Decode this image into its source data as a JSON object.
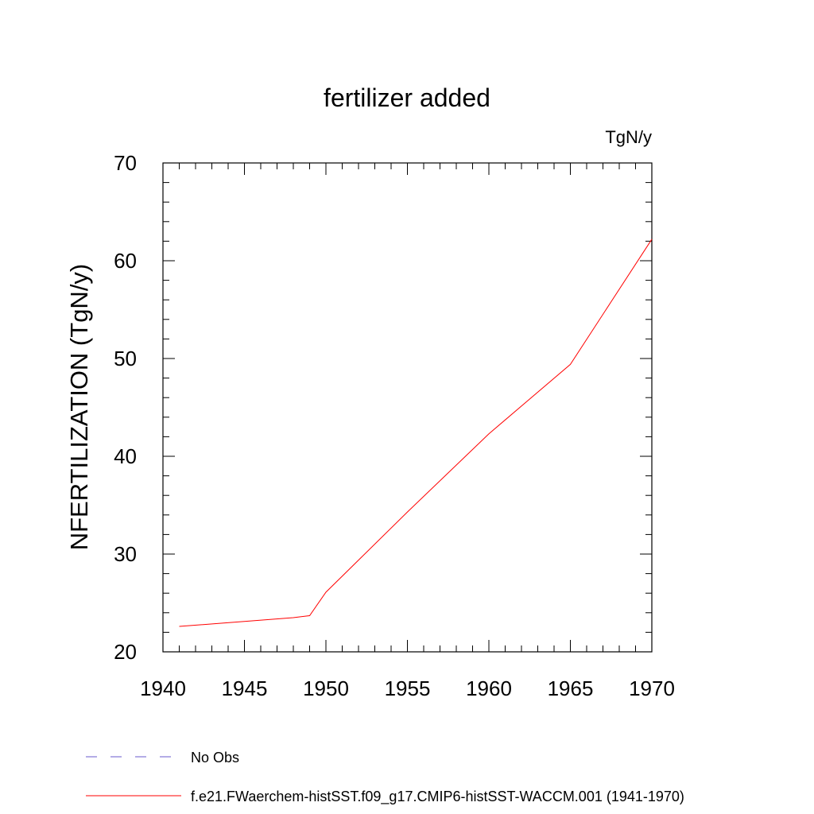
{
  "chart_data": {
    "type": "line",
    "title": "fertilizer added",
    "units_label": "TgN/y",
    "xlabel": "",
    "ylabel": "NFERTILIZATION  (TgN/y)",
    "xlim": [
      1940,
      1970
    ],
    "ylim": [
      20,
      70
    ],
    "x_ticks": [
      1940,
      1945,
      1950,
      1955,
      1960,
      1965,
      1970
    ],
    "y_ticks": [
      20,
      30,
      40,
      50,
      60,
      70
    ],
    "grid": false,
    "legend_position": "bottom",
    "series": [
      {
        "name": "f.e21.FWaerchem-histSST.f09_g17.CMIP6-histSST-WACCM.001 (1941-1970)",
        "color": "#ff0000",
        "style": "solid",
        "x": [
          1941,
          1948,
          1949,
          1950,
          1955,
          1960,
          1965,
          1970
        ],
        "y": [
          22.6,
          23.5,
          23.7,
          26.1,
          34.3,
          42.3,
          49.4,
          62.2
        ]
      }
    ],
    "legend": [
      {
        "label": "No Obs",
        "color": "#6a5acd",
        "style": "dashed"
      },
      {
        "label": "f.e21.FWaerchem-histSST.f09_g17.CMIP6-histSST-WACCM.001 (1941-1970)",
        "color": "#ff0000",
        "style": "solid"
      }
    ]
  }
}
